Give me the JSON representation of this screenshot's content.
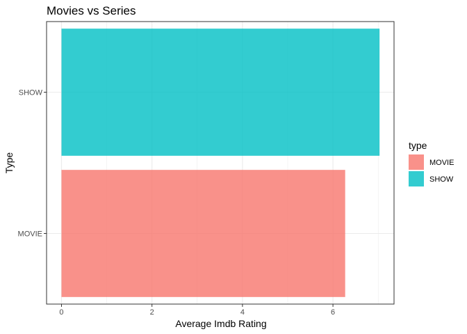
{
  "chart_data": {
    "type": "bar",
    "orientation": "horizontal",
    "title": "Movies vs Series",
    "xlabel": "Average Imdb Rating",
    "ylabel": "Type",
    "categories": [
      "MOVIE",
      "SHOW"
    ],
    "values": [
      6.27,
      7.03
    ],
    "colors": [
      "#F8766D",
      "#00BFC4"
    ],
    "xlim": [
      -0.33,
      7.35
    ],
    "xticks": [
      0,
      2,
      4,
      6
    ],
    "grid": true,
    "legend": {
      "title": "type",
      "position": "right",
      "entries": [
        "MOVIE",
        "SHOW"
      ]
    }
  }
}
